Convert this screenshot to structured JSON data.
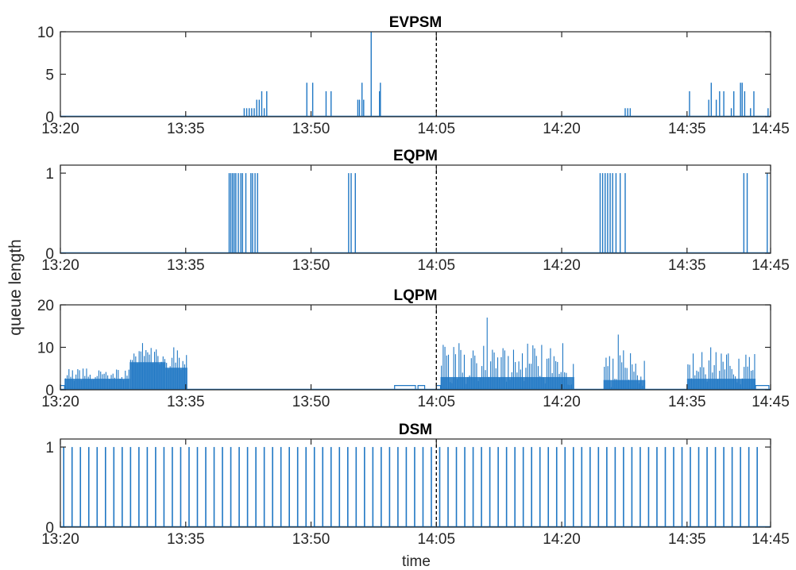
{
  "chart_data": {
    "type": "line",
    "xlabel": "time",
    "ylabel": "queue length",
    "x_range": [
      "13:20",
      "14:45"
    ],
    "x_ticks": [
      "13:20",
      "13:35",
      "13:50",
      "14:05",
      "14:20",
      "14:35",
      "14:45"
    ],
    "reference_line_time": "14:05",
    "colors": {
      "series": "#1f77c4",
      "axes": "#262626",
      "reference": "#000000"
    },
    "panels": [
      {
        "title": "EVPSM",
        "ylim": [
          0,
          10
        ],
        "y_ticks": [
          0,
          5,
          10
        ],
        "spikes": [
          {
            "t": "13:42",
            "v": 1
          },
          {
            "t": "13:42.3",
            "v": 1
          },
          {
            "t": "13:42.6",
            "v": 1
          },
          {
            "t": "13:42.9",
            "v": 1
          },
          {
            "t": "13:43.2",
            "v": 1
          },
          {
            "t": "13:43.5",
            "v": 2
          },
          {
            "t": "13:43.8",
            "v": 2
          },
          {
            "t": "13:44.1",
            "v": 3
          },
          {
            "t": "13:44.4",
            "v": 1
          },
          {
            "t": "13:44.7",
            "v": 3
          },
          {
            "t": "13:49.5",
            "v": 4
          },
          {
            "t": "13:50.2",
            "v": 4
          },
          {
            "t": "13:51.8",
            "v": 3
          },
          {
            "t": "13:52.4",
            "v": 3
          },
          {
            "t": "13:55.6",
            "v": 2
          },
          {
            "t": "13:55.8",
            "v": 2
          },
          {
            "t": "13:56.1",
            "v": 4
          },
          {
            "t": "13:56.3",
            "v": 2
          },
          {
            "t": "13:57.2",
            "v": 10
          },
          {
            "t": "13:58.2",
            "v": 3
          },
          {
            "t": "13:58.3",
            "v": 4
          },
          {
            "t": "14:27.6",
            "v": 1
          },
          {
            "t": "14:27.9",
            "v": 1
          },
          {
            "t": "14:28.2",
            "v": 1
          },
          {
            "t": "14:35.3",
            "v": 3
          },
          {
            "t": "14:37.6",
            "v": 2
          },
          {
            "t": "14:37.9",
            "v": 4
          },
          {
            "t": "14:38.5",
            "v": 2
          },
          {
            "t": "14:38.9",
            "v": 3
          },
          {
            "t": "14:39.4",
            "v": 3
          },
          {
            "t": "14:40.3",
            "v": 1
          },
          {
            "t": "14:40.6",
            "v": 3
          },
          {
            "t": "14:41.4",
            "v": 4
          },
          {
            "t": "14:41.6",
            "v": 4
          },
          {
            "t": "14:41.9",
            "v": 3
          },
          {
            "t": "14:42.6",
            "v": 1
          },
          {
            "t": "14:43.0",
            "v": 3
          },
          {
            "t": "14:44.7",
            "v": 1
          }
        ]
      },
      {
        "title": "EQPM",
        "ylim": [
          0,
          1.1
        ],
        "y_ticks": [
          0,
          1
        ],
        "spikes": [
          {
            "t": "13:40.2",
            "v": 1
          },
          {
            "t": "13:40.4",
            "v": 1
          },
          {
            "t": "13:40.6",
            "v": 1
          },
          {
            "t": "13:40.8",
            "v": 1
          },
          {
            "t": "13:41.0",
            "v": 1
          },
          {
            "t": "13:41.3",
            "v": 1
          },
          {
            "t": "13:41.6",
            "v": 1
          },
          {
            "t": "13:41.8",
            "v": 1
          },
          {
            "t": "13:42.2",
            "v": 1
          },
          {
            "t": "13:42.8",
            "v": 1
          },
          {
            "t": "13:43.0",
            "v": 1
          },
          {
            "t": "13:43.3",
            "v": 1
          },
          {
            "t": "13:43.6",
            "v": 1
          },
          {
            "t": "13:54.5",
            "v": 1
          },
          {
            "t": "13:54.8",
            "v": 1
          },
          {
            "t": "13:55.3",
            "v": 1
          },
          {
            "t": "14:24.6",
            "v": 1
          },
          {
            "t": "14:24.9",
            "v": 1
          },
          {
            "t": "14:25.2",
            "v": 1
          },
          {
            "t": "14:25.5",
            "v": 1
          },
          {
            "t": "14:25.8",
            "v": 1
          },
          {
            "t": "14:26.1",
            "v": 1
          },
          {
            "t": "14:26.5",
            "v": 1
          },
          {
            "t": "14:27.0",
            "v": 1
          },
          {
            "t": "14:27.6",
            "v": 1
          },
          {
            "t": "14:41.8",
            "v": 1
          },
          {
            "t": "14:42.2",
            "v": 1
          },
          {
            "t": "14:44.6",
            "v": 1
          }
        ]
      },
      {
        "title": "LQPM",
        "ylim": [
          0,
          20
        ],
        "y_ticks": [
          0,
          10,
          20
        ],
        "bands": [
          {
            "from": "13:20.5",
            "to": "13:28.3",
            "mean": 3.5,
            "amp": 1.5,
            "peak": 5
          },
          {
            "from": "13:28.3",
            "to": "13:32.6",
            "mean": 8,
            "amp": 2.5,
            "peak": 11
          },
          {
            "from": "13:32.6",
            "to": "13:35.2",
            "mean": 7,
            "amp": 3,
            "peak": 10
          },
          {
            "from": "14:05.5",
            "to": "14:21.5",
            "mean": 6,
            "amp": 5,
            "peak": 17
          },
          {
            "from": "14:25.0",
            "to": "14:30.0",
            "mean": 5,
            "amp": 4.5,
            "peak": 13
          },
          {
            "from": "14:35.0",
            "to": "14:43.2",
            "mean": 5,
            "amp": 4,
            "peak": 10
          }
        ],
        "small_blocks": [
          {
            "from": "13:20.0",
            "to": "13:20.5",
            "v": 1
          },
          {
            "from": "14:00.0",
            "to": "14:02.5",
            "v": 1
          },
          {
            "from": "14:02.8",
            "to": "14:03.6",
            "v": 1
          },
          {
            "from": "14:05.0",
            "to": "14:05.5",
            "v": 1
          },
          {
            "from": "14:43.2",
            "to": "14:44.8",
            "v": 1
          }
        ]
      },
      {
        "title": "DSM",
        "ylim": [
          0,
          1.1
        ],
        "y_ticks": [
          0,
          1
        ],
        "periodic": {
          "start": "13:20.4",
          "end": "14:43.5",
          "step_min": 1,
          "v": 1
        }
      }
    ]
  }
}
